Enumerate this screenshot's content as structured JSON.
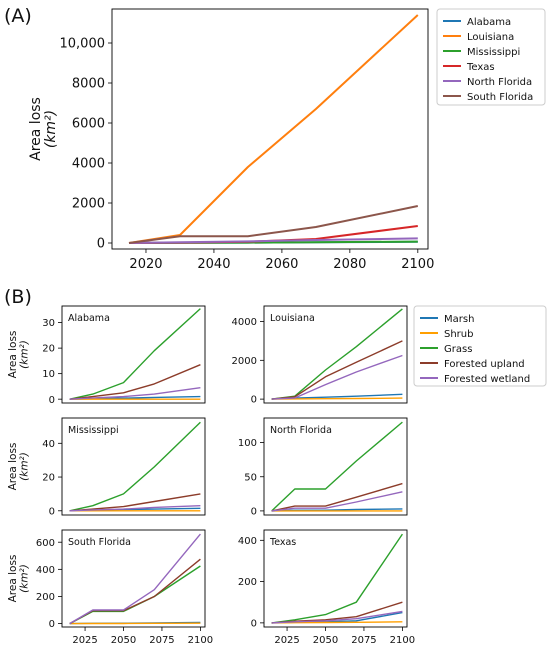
{
  "panel_labels": {
    "a": "(A)",
    "b": "(B)"
  },
  "colors": {
    "Alabama": "#1f77b4",
    "Louisiana": "#ff7f0e",
    "Mississippi": "#2ca02c",
    "Texas": "#d62728",
    "North Florida": "#9467bd",
    "South Florida": "#8c564b",
    "Marsh": "#1f77b4",
    "Shrub": "#ff9f00",
    "Grass": "#2ca02c",
    "Forested upland": "#8c3c2a",
    "Forested wetland": "#9467bd"
  },
  "chart_data": [
    {
      "type": "line",
      "panel": "(A)",
      "title": "",
      "xlabel": "",
      "ylabel": "Area loss",
      "ylabel_unit": "(km²)",
      "xlim": [
        2010,
        2103
      ],
      "ylim": [
        -300,
        11700
      ],
      "xticks": [
        2020,
        2040,
        2060,
        2080,
        2100
      ],
      "yticks": [
        0,
        2000,
        4000,
        6000,
        8000,
        10000
      ],
      "ytick_labels": [
        "0",
        "2000",
        "4000",
        "6000",
        "8000",
        "10,000"
      ],
      "grid": false,
      "legend": "outside-right",
      "x": [
        2015,
        2030,
        2050,
        2070,
        2100
      ],
      "series": [
        {
          "name": "Alabama",
          "values": [
            0,
            10,
            20,
            40,
            60
          ]
        },
        {
          "name": "Louisiana",
          "values": [
            0,
            400,
            3800,
            6700,
            11400
          ]
        },
        {
          "name": "Mississippi",
          "values": [
            0,
            10,
            20,
            40,
            70
          ]
        },
        {
          "name": "Texas",
          "values": [
            0,
            20,
            60,
            200,
            850
          ]
        },
        {
          "name": "North Florida",
          "values": [
            0,
            40,
            80,
            150,
            230
          ]
        },
        {
          "name": "South Florida",
          "values": [
            0,
            340,
            340,
            800,
            1850
          ]
        }
      ]
    },
    {
      "type": "line",
      "panel": "(B)",
      "title": "Alabama",
      "ylabel": "Area loss",
      "ylabel_unit": "(km²)",
      "xlim": [
        2010,
        2103
      ],
      "ylim": [
        -1.5,
        36.5
      ],
      "yticks": [
        0,
        10,
        20,
        30
      ],
      "xticks": [],
      "x": [
        2015,
        2030,
        2050,
        2070,
        2100
      ],
      "series": [
        {
          "name": "Marsh",
          "values": [
            0,
            0.2,
            0.4,
            0.7,
            1.0
          ]
        },
        {
          "name": "Shrub",
          "values": [
            0,
            0,
            0,
            0,
            0
          ]
        },
        {
          "name": "Grass",
          "values": [
            0,
            2.0,
            6.5,
            19.0,
            35.5
          ]
        },
        {
          "name": "Forested upland",
          "values": [
            0,
            1.0,
            2.5,
            6.0,
            13.5
          ]
        },
        {
          "name": "Forested wetland",
          "values": [
            0,
            0.5,
            1.0,
            2.0,
            4.5
          ]
        }
      ]
    },
    {
      "type": "line",
      "panel": "(B)",
      "title": "Louisiana",
      "ylabel": "",
      "ylabel_unit": "",
      "xlim": [
        2010,
        2103
      ],
      "ylim": [
        -200,
        4800
      ],
      "yticks": [
        0,
        2000,
        4000
      ],
      "xticks": [],
      "x": [
        2015,
        2030,
        2050,
        2070,
        2100
      ],
      "series": [
        {
          "name": "Marsh",
          "values": [
            0,
            50,
            100,
            150,
            250
          ]
        },
        {
          "name": "Shrub",
          "values": [
            0,
            10,
            20,
            30,
            50
          ]
        },
        {
          "name": "Grass",
          "values": [
            0,
            150,
            1500,
            2700,
            4650
          ]
        },
        {
          "name": "Forested upland",
          "values": [
            0,
            120,
            1150,
            1900,
            3000
          ]
        },
        {
          "name": "Forested wetland",
          "values": [
            0,
            60,
            750,
            1400,
            2250
          ]
        }
      ]
    },
    {
      "type": "line",
      "panel": "(B)",
      "title": "Mississippi",
      "ylabel": "Area loss",
      "ylabel_unit": "(km²)",
      "xlim": [
        2010,
        2103
      ],
      "ylim": [
        -2.5,
        55
      ],
      "yticks": [
        0,
        20,
        40
      ],
      "xticks": [],
      "x": [
        2015,
        2030,
        2050,
        2070,
        2100
      ],
      "series": [
        {
          "name": "Marsh",
          "values": [
            0,
            0.3,
            0.7,
            1.0,
            1.5
          ]
        },
        {
          "name": "Shrub",
          "values": [
            0,
            0,
            0,
            0,
            0
          ]
        },
        {
          "name": "Grass",
          "values": [
            0,
            3.0,
            10.0,
            26.0,
            52.5
          ]
        },
        {
          "name": "Forested upland",
          "values": [
            0,
            1.0,
            2.5,
            5.5,
            10.0
          ]
        },
        {
          "name": "Forested wetland",
          "values": [
            0,
            0.5,
            1.0,
            2.0,
            3.0
          ]
        }
      ]
    },
    {
      "type": "line",
      "panel": "(B)",
      "title": "North Florida",
      "ylabel": "",
      "ylabel_unit": "",
      "xlim": [
        2010,
        2103
      ],
      "ylim": [
        -6,
        136
      ],
      "yticks": [
        0,
        50,
        100
      ],
      "xticks": [],
      "x": [
        2015,
        2030,
        2050,
        2070,
        2100
      ],
      "series": [
        {
          "name": "Marsh",
          "values": [
            0,
            1,
            1,
            2,
            3
          ]
        },
        {
          "name": "Shrub",
          "values": [
            0,
            0,
            0,
            0,
            0
          ]
        },
        {
          "name": "Grass",
          "values": [
            0,
            32,
            32,
            73,
            130
          ]
        },
        {
          "name": "Forested upland",
          "values": [
            0,
            7,
            7,
            20,
            40
          ]
        },
        {
          "name": "Forested wetland",
          "values": [
            0,
            4,
            4,
            13,
            28
          ]
        }
      ]
    },
    {
      "type": "line",
      "panel": "(B)",
      "title": "South Florida",
      "ylabel": "Area loss",
      "ylabel_unit": "(km²)",
      "xlim": [
        2010,
        2103
      ],
      "ylim": [
        -25,
        690
      ],
      "yticks": [
        0,
        200,
        400,
        600
      ],
      "xticks": [
        2025,
        2050,
        2075,
        2100
      ],
      "x": [
        2015,
        2030,
        2050,
        2070,
        2100
      ],
      "series": [
        {
          "name": "Marsh",
          "values": [
            0,
            2,
            3,
            5,
            8
          ]
        },
        {
          "name": "Shrub",
          "values": [
            0,
            1,
            1,
            2,
            3
          ]
        },
        {
          "name": "Grass",
          "values": [
            0,
            90,
            90,
            200,
            425
          ]
        },
        {
          "name": "Forested upland",
          "values": [
            0,
            95,
            95,
            200,
            475
          ]
        },
        {
          "name": "Forested wetland",
          "values": [
            0,
            100,
            100,
            250,
            660
          ]
        }
      ]
    },
    {
      "type": "line",
      "panel": "(B)",
      "title": "Texas",
      "ylabel": "",
      "ylabel_unit": "",
      "xlim": [
        2010,
        2103
      ],
      "ylim": [
        -20,
        450
      ],
      "yticks": [
        0,
        200,
        400
      ],
      "xticks": [
        2025,
        2050,
        2075,
        2100
      ],
      "x": [
        2015,
        2030,
        2050,
        2070,
        2100
      ],
      "series": [
        {
          "name": "Marsh",
          "values": [
            0,
            3,
            5,
            10,
            50
          ]
        },
        {
          "name": "Shrub",
          "values": [
            0,
            1,
            2,
            3,
            5
          ]
        },
        {
          "name": "Grass",
          "values": [
            0,
            15,
            40,
            100,
            430
          ]
        },
        {
          "name": "Forested upland",
          "values": [
            0,
            8,
            15,
            30,
            100
          ]
        },
        {
          "name": "Forested wetland",
          "values": [
            0,
            5,
            10,
            20,
            55
          ]
        }
      ]
    }
  ],
  "legend_b": [
    "Marsh",
    "Shrub",
    "Grass",
    "Forested upland",
    "Forested wetland"
  ]
}
